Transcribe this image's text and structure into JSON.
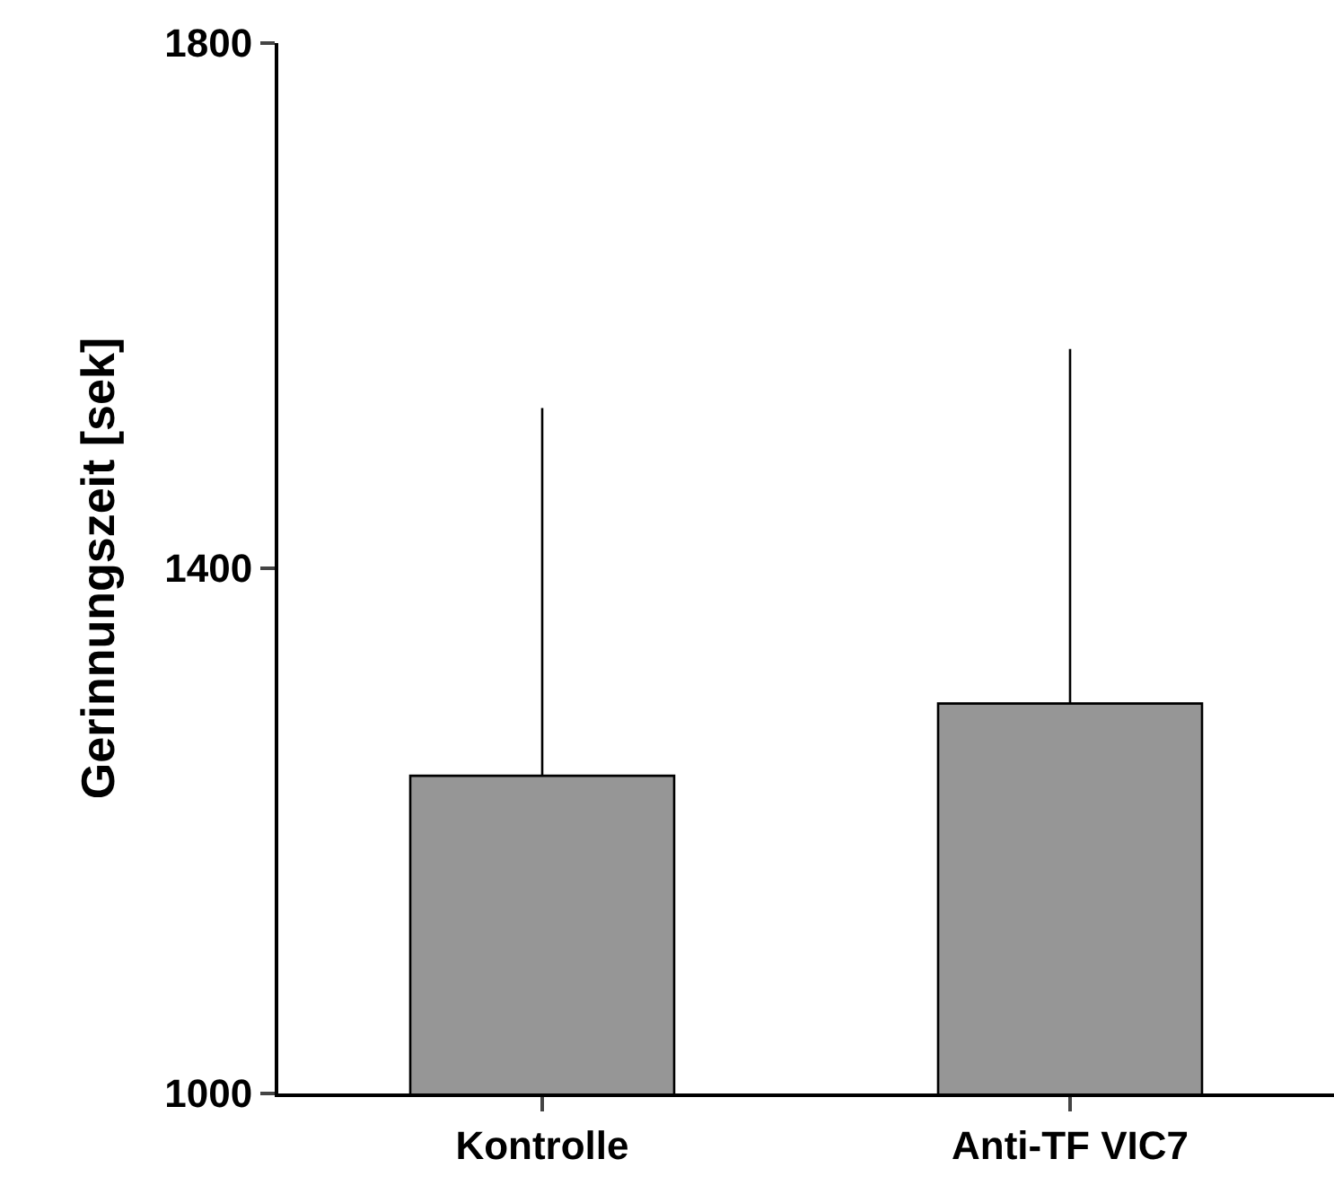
{
  "chart_data": {
    "type": "bar",
    "ylabel": "Gerinnungszeit [sek]",
    "categories": [
      "Kontrolle",
      "Anti-TF VIC7"
    ],
    "series": [
      {
        "color": "#969696",
        "values": [
          1242,
          1297
        ],
        "errors": [
          [
            1242,
            1522
          ],
          [
            1297,
            1567
          ]
        ]
      }
    ],
    "ylim": [
      1000,
      1800
    ],
    "yticks": [
      1000,
      1400,
      1800
    ],
    "legend": false
  }
}
